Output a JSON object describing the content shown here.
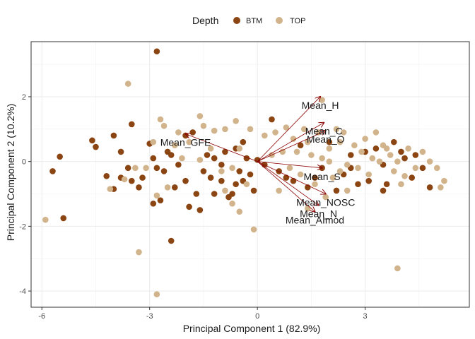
{
  "chart_data": {
    "type": "scatter",
    "xlabel": "Principal Component 1 (82.9%)",
    "ylabel": "Principal Component 2 (10.2%)",
    "xlim": [
      -6.3,
      5.9
    ],
    "ylim": [
      -4.5,
      3.7
    ],
    "x_ticks": [
      -6,
      -3,
      0,
      3
    ],
    "y_ticks": [
      -4,
      -2,
      0,
      2
    ],
    "grid": true,
    "legend": {
      "title": "Depth",
      "position": "top",
      "entries": [
        {
          "label": "BTM",
          "color": "#8B4513"
        },
        {
          "label": "TOP",
          "color": "#D2B48C"
        }
      ]
    },
    "series": [
      {
        "name": "BTM",
        "color": "#8B4513",
        "points": [
          [
            -2.8,
            3.4
          ],
          [
            -3.5,
            1.15
          ],
          [
            -5.7,
            -0.3
          ],
          [
            -5.5,
            0.15
          ],
          [
            -5.4,
            -1.75
          ],
          [
            -4.6,
            0.65
          ],
          [
            -4.5,
            0.45
          ],
          [
            -4.2,
            -0.45
          ],
          [
            -4.0,
            0.8
          ],
          [
            -4.0,
            -0.85
          ],
          [
            -3.8,
            -0.5
          ],
          [
            -3.8,
            0.3
          ],
          [
            -3.6,
            -0.2
          ],
          [
            -3.5,
            -0.6
          ],
          [
            -3.3,
            -0.8
          ],
          [
            -3.2,
            -0.5
          ],
          [
            -3.0,
            0.55
          ],
          [
            -2.9,
            0.1
          ],
          [
            -2.8,
            -0.2
          ],
          [
            -2.7,
            -1.2
          ],
          [
            -2.6,
            -0.3
          ],
          [
            -2.5,
            0.3
          ],
          [
            -2.4,
            0.2
          ],
          [
            -2.3,
            -0.8
          ],
          [
            -2.4,
            -2.45
          ],
          [
            -2.2,
            -0.1
          ],
          [
            -2.0,
            -0.6
          ],
          [
            -2.0,
            0.8
          ],
          [
            -1.8,
            0.9
          ],
          [
            -1.7,
            -1.0
          ],
          [
            -1.6,
            -1.5
          ],
          [
            -1.5,
            -0.3
          ],
          [
            -1.4,
            0.2
          ],
          [
            -1.3,
            -0.5
          ],
          [
            -1.2,
            -1.0
          ],
          [
            -1.2,
            0.1
          ],
          [
            -1.0,
            -0.1
          ],
          [
            -1.0,
            -0.6
          ],
          [
            -0.9,
            0.3
          ],
          [
            -0.8,
            -1.1
          ],
          [
            -0.7,
            -1.0
          ],
          [
            -0.6,
            0.4
          ],
          [
            -0.6,
            -0.7
          ],
          [
            -0.5,
            -0.3
          ],
          [
            -0.4,
            -0.6
          ],
          [
            -0.4,
            0.6
          ],
          [
            -0.3,
            0.1
          ],
          [
            -0.2,
            -0.4
          ],
          [
            -0.1,
            -0.9
          ],
          [
            0.0,
            0.05
          ],
          [
            -1.9,
            -1.4
          ],
          [
            -2.9,
            -1.3
          ],
          [
            0.2,
            -0.1
          ],
          [
            0.4,
            1.3
          ],
          [
            0.6,
            -0.3
          ],
          [
            0.8,
            -0.5
          ],
          [
            1.0,
            -0.6
          ],
          [
            1.2,
            0.5
          ],
          [
            1.4,
            -0.8
          ],
          [
            1.6,
            -0.5
          ],
          [
            1.8,
            -0.2
          ],
          [
            2.0,
            0.6
          ],
          [
            2.2,
            -0.9
          ],
          [
            2.4,
            -0.4
          ],
          [
            2.6,
            0.2
          ],
          [
            2.8,
            -0.7
          ],
          [
            3.0,
            0.3
          ],
          [
            3.1,
            -0.6
          ],
          [
            3.3,
            0.4
          ],
          [
            3.5,
            -0.1
          ],
          [
            3.6,
            -0.7
          ],
          [
            3.8,
            0.6
          ],
          [
            4.0,
            0.3
          ],
          [
            4.1,
            0.1
          ],
          [
            4.3,
            -0.5
          ],
          [
            4.4,
            0.2
          ],
          [
            4.6,
            -0.2
          ],
          [
            4.8,
            -0.8
          ],
          [
            3.5,
            -0.9
          ],
          [
            2.6,
            -0.2
          ]
        ]
      },
      {
        "name": "TOP",
        "color": "#D2B48C",
        "points": [
          [
            -3.6,
            2.4
          ],
          [
            -5.9,
            -1.8
          ],
          [
            -4.1,
            -0.85
          ],
          [
            -3.7,
            -0.55
          ],
          [
            -3.4,
            -0.2
          ],
          [
            -3.3,
            -2.8
          ],
          [
            -3.1,
            -0.2
          ],
          [
            -2.9,
            0.6
          ],
          [
            -2.7,
            1.3
          ],
          [
            -2.6,
            1.1
          ],
          [
            -2.5,
            -0.8
          ],
          [
            -2.3,
            0.5
          ],
          [
            -2.1,
            0.1
          ],
          [
            -2.2,
            0.9
          ],
          [
            -1.9,
            0.6
          ],
          [
            -1.6,
            1.4
          ],
          [
            -1.5,
            1.1
          ],
          [
            -1.3,
            0.4
          ],
          [
            -1.2,
            0.95
          ],
          [
            -1.0,
            -0.3
          ],
          [
            -0.9,
            -0.9
          ],
          [
            -0.9,
            1.0
          ],
          [
            -0.7,
            -0.2
          ],
          [
            -0.6,
            1.25
          ],
          [
            -0.5,
            0.4
          ],
          [
            -0.3,
            -0.7
          ],
          [
            -0.2,
            1.0
          ],
          [
            -0.5,
            -1.55
          ],
          [
            -0.1,
            -2.1
          ],
          [
            0.2,
            0.8
          ],
          [
            0.4,
            0.2
          ],
          [
            0.5,
            0.9
          ],
          [
            0.6,
            -0.9
          ],
          [
            0.7,
            0.3
          ],
          [
            0.8,
            1.05
          ],
          [
            0.9,
            -0.2
          ],
          [
            1.0,
            0.7
          ],
          [
            1.1,
            0.3
          ],
          [
            1.2,
            -0.4
          ],
          [
            1.3,
            1.0
          ],
          [
            1.4,
            0.6
          ],
          [
            1.4,
            -1.45
          ],
          [
            1.5,
            0.2
          ],
          [
            1.6,
            -0.7
          ],
          [
            1.7,
            0.9
          ],
          [
            1.8,
            1.9
          ],
          [
            1.8,
            0.1
          ],
          [
            1.9,
            -1.1
          ],
          [
            2.0,
            0.4
          ],
          [
            2.1,
            -0.5
          ],
          [
            2.2,
            1.0
          ],
          [
            2.3,
            0.6
          ],
          [
            2.3,
            -0.3
          ],
          [
            2.4,
            0.9
          ],
          [
            2.5,
            -0.1
          ],
          [
            2.5,
            -0.9
          ],
          [
            2.7,
            0.5
          ],
          [
            2.8,
            -0.2
          ],
          [
            2.9,
            0.3
          ],
          [
            3.0,
            0.7
          ],
          [
            3.1,
            -0.4
          ],
          [
            3.2,
            0.1
          ],
          [
            3.3,
            0.9
          ],
          [
            3.4,
            0.0
          ],
          [
            3.5,
            0.5
          ],
          [
            3.6,
            0.4
          ],
          [
            3.7,
            0.2
          ],
          [
            3.8,
            -0.3
          ],
          [
            3.9,
            0.0
          ],
          [
            4.0,
            -0.7
          ],
          [
            4.1,
            -0.45
          ],
          [
            4.2,
            0.4
          ],
          [
            4.4,
            -0.2
          ],
          [
            4.6,
            0.3
          ],
          [
            4.8,
            0.0
          ],
          [
            5.0,
            -0.2
          ],
          [
            5.1,
            -0.8
          ],
          [
            5.2,
            -0.6
          ],
          [
            3.9,
            -3.3
          ],
          [
            -2.8,
            -4.1
          ],
          [
            -2.8,
            -1.05
          ],
          [
            -1.6,
            0.05
          ],
          [
            -0.7,
            -1.3
          ],
          [
            2.0,
            0.0
          ]
        ]
      }
    ],
    "loadings": [
      {
        "label": "Mean_H",
        "x": 1.75,
        "y": 2.0
      },
      {
        "label": "Mean_C",
        "x": 1.85,
        "y": 1.2
      },
      {
        "label": "Mean_O",
        "x": 1.9,
        "y": 0.95
      },
      {
        "label": "Mean_S",
        "x": 1.8,
        "y": -0.2
      },
      {
        "label": "Mean_NOSC",
        "x": 1.9,
        "y": -1.0
      },
      {
        "label": "Mean_N",
        "x": 1.7,
        "y": -1.35
      },
      {
        "label": "Mean_AImod",
        "x": 1.6,
        "y": -1.55
      },
      {
        "label": "Mean_GFE",
        "x": -2.0,
        "y": 0.85
      }
    ],
    "arrow_color": "#8B0000"
  }
}
